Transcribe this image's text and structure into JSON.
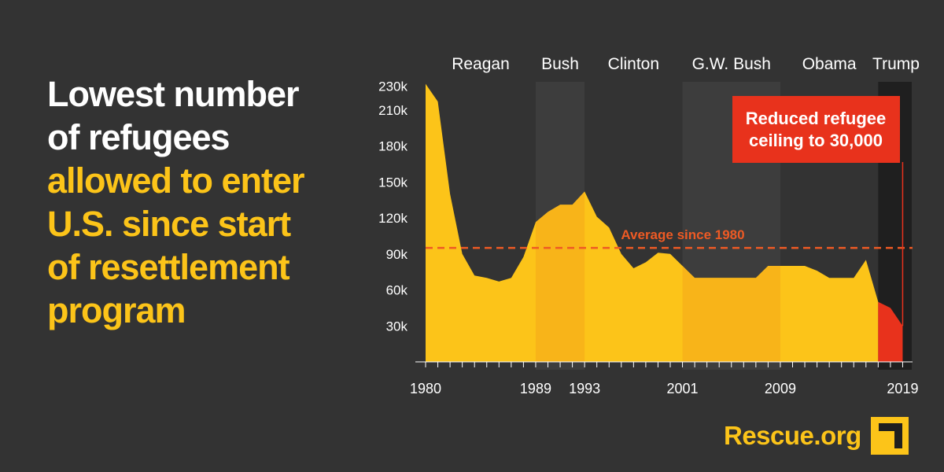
{
  "headline": {
    "lines_white": [
      "Lowest number",
      "of refugees"
    ],
    "lines_yellow": [
      "allowed to enter",
      "U.S. since start",
      "of resettlement",
      "program"
    ]
  },
  "logo": {
    "text": "Rescue.org",
    "icon": "irc-corner-mark-icon"
  },
  "colors": {
    "background": "#333333",
    "area": "#fcc419",
    "area_dark": "#f8b419",
    "highlight": "#e8321c",
    "average_line": "#ee5a24",
    "text": "#ffffff"
  },
  "chart_data": {
    "type": "area",
    "x": [
      1980,
      1981,
      1982,
      1983,
      1984,
      1985,
      1986,
      1987,
      1988,
      1989,
      1990,
      1991,
      1992,
      1993,
      1994,
      1995,
      1996,
      1997,
      1998,
      1999,
      2000,
      2001,
      2002,
      2003,
      2004,
      2005,
      2006,
      2007,
      2008,
      2009,
      2010,
      2011,
      2012,
      2013,
      2014,
      2015,
      2016,
      2017,
      2018,
      2019
    ],
    "values": [
      231700,
      217000,
      140000,
      90000,
      72000,
      70000,
      67000,
      70000,
      87500,
      116500,
      125000,
      131000,
      131000,
      142000,
      121000,
      112000,
      90000,
      78000,
      83000,
      91000,
      90000,
      80000,
      70000,
      70000,
      70000,
      70000,
      70000,
      70000,
      80000,
      80000,
      80000,
      80000,
      76000,
      70000,
      70000,
      70000,
      85000,
      50000,
      45000,
      30000
    ],
    "highlight_from_year": 2017,
    "y_ticks": [
      30000,
      60000,
      90000,
      120000,
      150000,
      180000,
      210000,
      230000
    ],
    "y_tick_labels": [
      "30k",
      "60k",
      "90k",
      "120k",
      "150k",
      "180k",
      "210k",
      "230k"
    ],
    "x_tick_labels": [
      "1980",
      "1989",
      "1993",
      "2001",
      "2009",
      "2019"
    ],
    "ylim": [
      0,
      231700
    ],
    "average": {
      "value": 95000,
      "label": "Average since 1980"
    },
    "annotation": {
      "lines": [
        "Reduced refugee",
        "ceiling to 30,000"
      ],
      "year": 2019
    },
    "administrations": [
      {
        "name": "Reagan",
        "start": 1980,
        "end": 1989,
        "shaded": false
      },
      {
        "name": "Bush",
        "start": 1989,
        "end": 1993,
        "shaded": true
      },
      {
        "name": "Clinton",
        "start": 1993,
        "end": 2001,
        "shaded": false
      },
      {
        "name": "G.W. Bush",
        "start": 2001,
        "end": 2009,
        "shaded": true
      },
      {
        "name": "Obama",
        "start": 2009,
        "end": 2017,
        "shaded": false
      },
      {
        "name": "Trump",
        "start": 2017,
        "end": 2020,
        "shaded": true,
        "dark": true
      }
    ],
    "xlabel": "",
    "ylabel": "",
    "grid": false
  }
}
